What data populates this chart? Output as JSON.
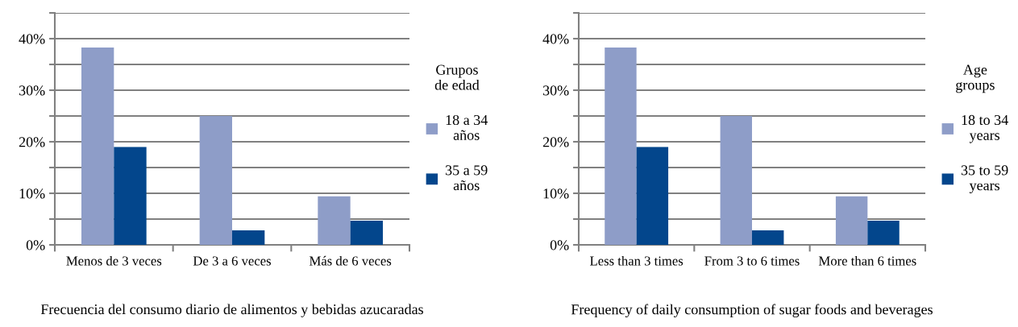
{
  "chart_data": [
    {
      "type": "bar",
      "xlabel": "Frecuencia del consumo diario de alimentos y bebidas azucaradas",
      "legend_title": "Grupos\nde edad",
      "categories": [
        "Menos de 3 veces",
        "De 3 a 6 veces",
        "Más de 6 veces"
      ],
      "series": [
        {
          "name": "18 a 34\naños",
          "color": "#8e9dc8",
          "values": [
            38.3,
            25,
            9.4
          ]
        },
        {
          "name": "35 a 59\naños",
          "color": "#03468c",
          "values": [
            19,
            2.8,
            4.7
          ]
        }
      ],
      "ylim": [
        0,
        45
      ],
      "yticks": [
        {
          "value": 0,
          "label": "0%"
        },
        {
          "value": 5,
          "label": null
        },
        {
          "value": 10,
          "label": "10%"
        },
        {
          "value": 15,
          "label": null
        },
        {
          "value": 20,
          "label": "20%"
        },
        {
          "value": 25,
          "label": null
        },
        {
          "value": 30,
          "label": "30%"
        },
        {
          "value": 35,
          "label": null
        },
        {
          "value": 40,
          "label": "40%"
        },
        {
          "value": 45,
          "label": null
        }
      ],
      "grid": "y",
      "legend": "right"
    },
    {
      "type": "bar",
      "xlabel": "Frequency of daily consumption of sugar foods and beverages",
      "legend_title": "Age\ngroups",
      "categories": [
        "Less than 3 times",
        "From 3 to 6 times",
        "More than 6 times"
      ],
      "series": [
        {
          "name": "18 to 34\nyears",
          "color": "#8e9dc8",
          "values": [
            38.3,
            25,
            9.4
          ]
        },
        {
          "name": "35 to 59\nyears",
          "color": "#03468c",
          "values": [
            19,
            2.8,
            4.7
          ]
        }
      ],
      "ylim": [
        0,
        45
      ],
      "yticks": [
        {
          "value": 0,
          "label": "0%"
        },
        {
          "value": 5,
          "label": null
        },
        {
          "value": 10,
          "label": "10%"
        },
        {
          "value": 15,
          "label": null
        },
        {
          "value": 20,
          "label": "20%"
        },
        {
          "value": 25,
          "label": null
        },
        {
          "value": 30,
          "label": "30%"
        },
        {
          "value": 35,
          "label": null
        },
        {
          "value": 40,
          "label": "40%"
        },
        {
          "value": 45,
          "label": null
        }
      ],
      "grid": "y",
      "legend": "right"
    }
  ]
}
